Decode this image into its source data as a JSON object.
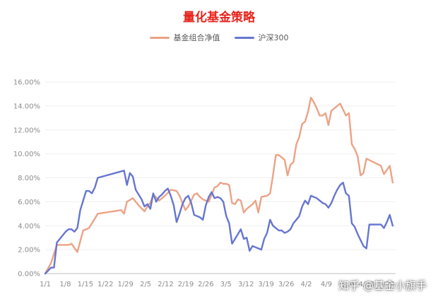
{
  "colors": {
    "title": "#e8231b",
    "fund": "#eba386",
    "hs300": "#6676cf",
    "grid": "#efefef",
    "axis": "#bfbfbf"
  },
  "watermark": "知乎 @基金小旗手",
  "chart_data": {
    "type": "line",
    "title": "量化基金策略",
    "legend_position": "top-center",
    "grid": true,
    "xlabel": "",
    "ylabel": "",
    "x_tick_labels": [
      "1/1",
      "1/8",
      "1/15",
      "1/22",
      "1/29",
      "2/5",
      "2/12",
      "2/19",
      "2/26",
      "3/5",
      "3/12",
      "3/19",
      "3/26",
      "4/2",
      "4/9",
      "4/16",
      "4/23",
      "4/30"
    ],
    "y_tick_labels": [
      "0.00%",
      "2.00%",
      "4.00%",
      "6.00%",
      "8.00%",
      "10.00%",
      "12.00%",
      "14.00%",
      "16.00%"
    ],
    "ylim": [
      0,
      16
    ],
    "xlim": [
      0,
      120
    ],
    "series": [
      {
        "name": "基金组合净值",
        "color_key": "fund",
        "points": [
          [
            0,
            0
          ],
          [
            2,
            0.9
          ],
          [
            4,
            2.4
          ],
          [
            8,
            2.4
          ],
          [
            9,
            2.5
          ],
          [
            11,
            1.8
          ],
          [
            13,
            3.6
          ],
          [
            15,
            3.8
          ],
          [
            18,
            5.0
          ],
          [
            26,
            5.3
          ],
          [
            27,
            5.0
          ],
          [
            28,
            6.0
          ],
          [
            30,
            6.3
          ],
          [
            32,
            5.7
          ],
          [
            34,
            5.2
          ],
          [
            35,
            5.6
          ],
          [
            36,
            5.9
          ],
          [
            37,
            6.6
          ],
          [
            39,
            6.1
          ],
          [
            41,
            6.5
          ],
          [
            43,
            7.0
          ],
          [
            45,
            6.9
          ],
          [
            46,
            6.5
          ],
          [
            47,
            5.9
          ],
          [
            48,
            5.3
          ],
          [
            49,
            5.6
          ],
          [
            50,
            6.1
          ],
          [
            51,
            6.6
          ],
          [
            52,
            6.7
          ],
          [
            53,
            6.4
          ],
          [
            54,
            6.2
          ],
          [
            55,
            6.1
          ],
          [
            56,
            6.0
          ],
          [
            57,
            6.6
          ],
          [
            58,
            7.2
          ],
          [
            59,
            7.3
          ],
          [
            60,
            7.6
          ],
          [
            61,
            7.5
          ],
          [
            62,
            7.5
          ],
          [
            63,
            7.4
          ],
          [
            64,
            5.9
          ],
          [
            65,
            5.8
          ],
          [
            66,
            6.2
          ],
          [
            67,
            6.1
          ],
          [
            68,
            5.1
          ],
          [
            69,
            5.4
          ],
          [
            71,
            5.8
          ],
          [
            72,
            6.1
          ],
          [
            73,
            5.1
          ],
          [
            74,
            6.4
          ],
          [
            76,
            6.5
          ],
          [
            77,
            6.7
          ],
          [
            78,
            8.2
          ],
          [
            79,
            9.9
          ],
          [
            80,
            9.9
          ],
          [
            81,
            9.7
          ],
          [
            82,
            9.5
          ],
          [
            83,
            8.2
          ],
          [
            84,
            9.1
          ],
          [
            85,
            9.3
          ],
          [
            86,
            10.8
          ],
          [
            87,
            11.4
          ],
          [
            88,
            12.5
          ],
          [
            89,
            12.7
          ],
          [
            90,
            13.5
          ],
          [
            91,
            14.7
          ],
          [
            92,
            14.3
          ],
          [
            93,
            13.8
          ],
          [
            94,
            13.2
          ],
          [
            95,
            13.2
          ],
          [
            96,
            13.4
          ],
          [
            97,
            12.4
          ],
          [
            98,
            13.6
          ],
          [
            101,
            14.2
          ],
          [
            102,
            13.7
          ],
          [
            103,
            13.2
          ],
          [
            104,
            13.4
          ],
          [
            105,
            10.8
          ],
          [
            106,
            10.4
          ],
          [
            107,
            9.8
          ],
          [
            108,
            8.2
          ],
          [
            109,
            8.4
          ],
          [
            110,
            9.6
          ],
          [
            115,
            9.0
          ],
          [
            116,
            8.3
          ],
          [
            118,
            9.0
          ],
          [
            119,
            7.6
          ]
        ]
      },
      {
        "name": "沪深300",
        "color_key": "hs300",
        "points": [
          [
            0,
            0
          ],
          [
            2,
            0.5
          ],
          [
            3,
            0.5
          ],
          [
            4,
            2.6
          ],
          [
            7,
            3.5
          ],
          [
            8,
            3.7
          ],
          [
            9,
            3.7
          ],
          [
            10,
            3.5
          ],
          [
            11,
            3.8
          ],
          [
            12,
            5.3
          ],
          [
            14,
            6.9
          ],
          [
            15,
            6.9
          ],
          [
            16,
            6.7
          ],
          [
            17,
            7.2
          ],
          [
            18,
            8.0
          ],
          [
            27,
            8.6
          ],
          [
            28,
            7.4
          ],
          [
            29,
            8.4
          ],
          [
            30,
            8.1
          ],
          [
            31,
            7.0
          ],
          [
            32,
            6.6
          ],
          [
            33,
            6.2
          ],
          [
            34,
            5.6
          ],
          [
            35,
            5.8
          ],
          [
            36,
            5.4
          ],
          [
            37,
            6.7
          ],
          [
            38,
            6.0
          ],
          [
            39,
            6.4
          ],
          [
            40,
            6.6
          ],
          [
            41,
            6.9
          ],
          [
            42,
            7.1
          ],
          [
            43,
            6.5
          ],
          [
            44,
            5.7
          ],
          [
            45,
            4.3
          ],
          [
            46,
            5.0
          ],
          [
            47,
            5.8
          ],
          [
            48,
            6.3
          ],
          [
            49,
            6.5
          ],
          [
            50,
            5.9
          ],
          [
            51,
            4.9
          ],
          [
            52,
            4.8
          ],
          [
            53,
            4.7
          ],
          [
            54,
            4.5
          ],
          [
            55,
            5.7
          ],
          [
            56,
            6.4
          ],
          [
            57,
            6.8
          ],
          [
            58,
            6.3
          ],
          [
            59,
            6.4
          ],
          [
            60,
            6.3
          ],
          [
            61,
            6.0
          ],
          [
            62,
            4.8
          ],
          [
            63,
            4.2
          ],
          [
            64,
            2.5
          ],
          [
            65,
            2.9
          ],
          [
            66,
            3.3
          ],
          [
            67,
            3.7
          ],
          [
            68,
            2.9
          ],
          [
            69,
            3.0
          ],
          [
            70,
            1.9
          ],
          [
            71,
            2.3
          ],
          [
            72,
            2.2
          ],
          [
            73,
            2.1
          ],
          [
            74,
            2.0
          ],
          [
            75,
            2.9
          ],
          [
            76,
            3.4
          ],
          [
            77,
            4.5
          ],
          [
            78,
            4.0
          ],
          [
            79,
            3.8
          ],
          [
            80,
            3.6
          ],
          [
            81,
            3.6
          ],
          [
            82,
            3.4
          ],
          [
            83,
            3.5
          ],
          [
            84,
            3.7
          ],
          [
            85,
            4.2
          ],
          [
            86,
            4.5
          ],
          [
            87,
            4.8
          ],
          [
            88,
            5.6
          ],
          [
            89,
            6.1
          ],
          [
            90,
            5.8
          ],
          [
            91,
            6.5
          ],
          [
            92,
            6.4
          ],
          [
            93,
            6.3
          ],
          [
            94,
            6.1
          ],
          [
            95,
            5.9
          ],
          [
            96,
            5.8
          ],
          [
            97,
            5.5
          ],
          [
            98,
            5.9
          ],
          [
            99,
            6.5
          ],
          [
            100,
            7.0
          ],
          [
            101,
            7.4
          ],
          [
            102,
            7.6
          ],
          [
            103,
            6.7
          ],
          [
            104,
            6.5
          ],
          [
            105,
            4.2
          ],
          [
            106,
            3.9
          ],
          [
            107,
            3.3
          ],
          [
            108,
            2.8
          ],
          [
            109,
            2.3
          ],
          [
            110,
            2.1
          ],
          [
            111,
            4.1
          ],
          [
            115,
            4.1
          ],
          [
            116,
            3.8
          ],
          [
            117,
            4.3
          ],
          [
            118,
            4.9
          ],
          [
            119,
            4.0
          ]
        ]
      }
    ]
  }
}
